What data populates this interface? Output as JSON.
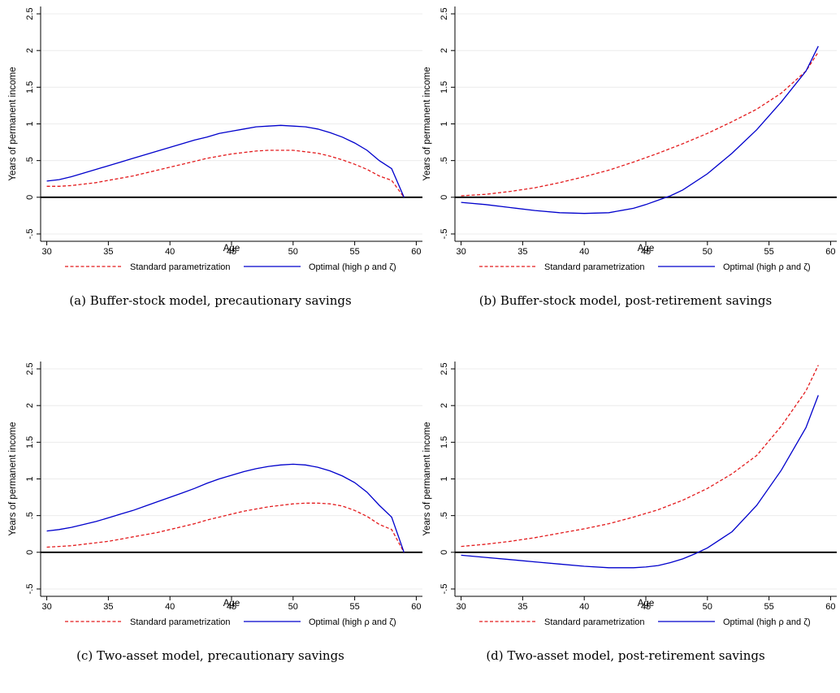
{
  "chart_data": [
    {
      "type": "line",
      "caption": "(a) Buffer-stock model, precautionary savings",
      "xlabel": "Age",
      "ylabel": "Years of permanent income",
      "xlim": [
        29.5,
        60.5
      ],
      "ylim": [
        -0.6,
        2.6
      ],
      "xticks": [
        "30",
        "35",
        "40",
        "45",
        "50",
        "55",
        "60"
      ],
      "yticks": [
        "-.5",
        "0",
        ".5",
        "1",
        "1.5",
        "2",
        "2.5"
      ],
      "xtick_values": [
        30,
        35,
        40,
        45,
        50,
        55,
        60
      ],
      "ytick_values": [
        -0.5,
        0,
        0.5,
        1,
        1.5,
        2,
        2.5
      ],
      "zero_line": true,
      "grid": "horizontal",
      "legend_position": "bottom",
      "series": [
        {
          "name": "Standard parametrization",
          "style": "dashed",
          "color": "#e31a1c",
          "x": [
            30,
            31,
            32,
            33,
            34,
            35,
            36,
            37,
            38,
            39,
            40,
            41,
            42,
            43,
            44,
            45,
            46,
            47,
            48,
            49,
            50,
            51,
            52,
            53,
            54,
            55,
            56,
            57,
            58,
            59
          ],
          "values": [
            0.15,
            0.15,
            0.16,
            0.18,
            0.2,
            0.23,
            0.26,
            0.29,
            0.33,
            0.37,
            0.41,
            0.45,
            0.49,
            0.53,
            0.56,
            0.59,
            0.61,
            0.63,
            0.64,
            0.64,
            0.64,
            0.62,
            0.6,
            0.56,
            0.51,
            0.45,
            0.38,
            0.29,
            0.23,
            0.0
          ]
        },
        {
          "name": "Optimal (high ρ and ζ)",
          "style": "solid",
          "color": "#0000cc",
          "x": [
            30,
            31,
            32,
            33,
            34,
            35,
            36,
            37,
            38,
            39,
            40,
            41,
            42,
            43,
            44,
            45,
            46,
            47,
            48,
            49,
            50,
            51,
            52,
            53,
            54,
            55,
            56,
            57,
            58,
            59
          ],
          "values": [
            0.22,
            0.24,
            0.28,
            0.33,
            0.38,
            0.43,
            0.48,
            0.53,
            0.58,
            0.63,
            0.68,
            0.73,
            0.78,
            0.82,
            0.87,
            0.9,
            0.93,
            0.96,
            0.97,
            0.98,
            0.97,
            0.96,
            0.93,
            0.88,
            0.82,
            0.74,
            0.64,
            0.5,
            0.39,
            0.0
          ]
        }
      ]
    },
    {
      "type": "line",
      "caption": "(b) Buffer-stock model, post-retirement savings",
      "xlabel": "Age",
      "ylabel": "Years of permanent income",
      "xlim": [
        29.5,
        60.5
      ],
      "ylim": [
        -0.6,
        2.6
      ],
      "xticks": [
        "30",
        "35",
        "40",
        "45",
        "50",
        "55",
        "60"
      ],
      "yticks": [
        "-.5",
        "0",
        ".5",
        "1",
        "1.5",
        "2",
        "2.5"
      ],
      "xtick_values": [
        30,
        35,
        40,
        45,
        50,
        55,
        60
      ],
      "ytick_values": [
        -0.5,
        0,
        0.5,
        1,
        1.5,
        2,
        2.5
      ],
      "zero_line": true,
      "grid": "horizontal",
      "legend_position": "bottom",
      "series": [
        {
          "name": "Standard parametrization",
          "style": "dashed",
          "color": "#e31a1c",
          "x": [
            30,
            32,
            34,
            36,
            38,
            40,
            42,
            44,
            46,
            48,
            50,
            52,
            54,
            56,
            58,
            59
          ],
          "values": [
            0.02,
            0.04,
            0.08,
            0.13,
            0.2,
            0.28,
            0.37,
            0.48,
            0.6,
            0.73,
            0.87,
            1.03,
            1.2,
            1.42,
            1.72,
            1.98
          ]
        },
        {
          "name": "Optimal (high ρ and ζ)",
          "style": "solid",
          "color": "#0000cc",
          "x": [
            30,
            32,
            34,
            36,
            38,
            40,
            42,
            44,
            45,
            46,
            47,
            48,
            50,
            52,
            54,
            56,
            58,
            59
          ],
          "values": [
            -0.07,
            -0.1,
            -0.14,
            -0.18,
            -0.21,
            -0.22,
            -0.21,
            -0.15,
            -0.1,
            -0.04,
            0.02,
            0.1,
            0.32,
            0.6,
            0.92,
            1.3,
            1.72,
            2.06
          ]
        }
      ]
    },
    {
      "type": "line",
      "caption": "(c) Two-asset model, precautionary savings",
      "xlabel": "Age",
      "ylabel": "Years of permanent income",
      "xlim": [
        29.5,
        60.5
      ],
      "ylim": [
        -0.6,
        2.6
      ],
      "xticks": [
        "30",
        "35",
        "40",
        "45",
        "50",
        "55",
        "60"
      ],
      "yticks": [
        "-.5",
        "0",
        ".5",
        "1",
        "1.5",
        "2",
        "2.5"
      ],
      "xtick_values": [
        30,
        35,
        40,
        45,
        50,
        55,
        60
      ],
      "ytick_values": [
        -0.5,
        0,
        0.5,
        1,
        1.5,
        2,
        2.5
      ],
      "zero_line": true,
      "grid": "horizontal",
      "legend_position": "bottom",
      "series": [
        {
          "name": "Standard parametrization",
          "style": "dashed",
          "color": "#e31a1c",
          "x": [
            30,
            31,
            32,
            33,
            34,
            35,
            36,
            37,
            38,
            39,
            40,
            41,
            42,
            43,
            44,
            45,
            46,
            47,
            48,
            49,
            50,
            51,
            52,
            53,
            54,
            55,
            56,
            57,
            58,
            59
          ],
          "values": [
            0.07,
            0.08,
            0.09,
            0.11,
            0.13,
            0.15,
            0.18,
            0.21,
            0.24,
            0.27,
            0.31,
            0.35,
            0.39,
            0.44,
            0.48,
            0.52,
            0.56,
            0.59,
            0.62,
            0.64,
            0.66,
            0.67,
            0.67,
            0.66,
            0.63,
            0.57,
            0.49,
            0.38,
            0.31,
            0.0
          ]
        },
        {
          "name": "Optimal (high ρ and ζ)",
          "style": "solid",
          "color": "#0000cc",
          "x": [
            30,
            31,
            32,
            33,
            34,
            35,
            36,
            37,
            38,
            39,
            40,
            41,
            42,
            43,
            44,
            45,
            46,
            47,
            48,
            49,
            50,
            51,
            52,
            53,
            54,
            55,
            56,
            57,
            58,
            59
          ],
          "values": [
            0.29,
            0.31,
            0.34,
            0.38,
            0.42,
            0.47,
            0.52,
            0.57,
            0.63,
            0.69,
            0.75,
            0.81,
            0.87,
            0.94,
            1.0,
            1.05,
            1.1,
            1.14,
            1.17,
            1.19,
            1.2,
            1.19,
            1.16,
            1.11,
            1.04,
            0.95,
            0.82,
            0.64,
            0.48,
            0.0
          ]
        }
      ]
    },
    {
      "type": "line",
      "caption": "(d) Two-asset model, post-retirement savings",
      "xlabel": "Age",
      "ylabel": "Years of permanent income",
      "xlim": [
        29.5,
        60.5
      ],
      "ylim": [
        -0.6,
        2.6
      ],
      "xticks": [
        "30",
        "35",
        "40",
        "45",
        "50",
        "55",
        "60"
      ],
      "yticks": [
        "-.5",
        "0",
        ".5",
        "1",
        "1.5",
        "2",
        "2.5"
      ],
      "xtick_values": [
        30,
        35,
        40,
        45,
        50,
        55,
        60
      ],
      "ytick_values": [
        -0.5,
        0,
        0.5,
        1,
        1.5,
        2,
        2.5
      ],
      "zero_line": true,
      "grid": "horizontal",
      "legend_position": "bottom",
      "series": [
        {
          "name": "Standard parametrization",
          "style": "dashed",
          "color": "#e31a1c",
          "x": [
            30,
            32,
            34,
            36,
            38,
            40,
            42,
            44,
            46,
            48,
            50,
            52,
            54,
            56,
            58,
            59
          ],
          "values": [
            0.08,
            0.11,
            0.15,
            0.2,
            0.26,
            0.32,
            0.39,
            0.48,
            0.58,
            0.71,
            0.87,
            1.07,
            1.32,
            1.72,
            2.2,
            2.55
          ]
        },
        {
          "name": "Optimal (high ρ and ζ)",
          "style": "solid",
          "color": "#0000cc",
          "x": [
            30,
            32,
            34,
            36,
            38,
            40,
            42,
            43,
            44,
            45,
            46,
            47,
            48,
            49,
            50,
            52,
            54,
            56,
            58,
            59
          ],
          "values": [
            -0.04,
            -0.07,
            -0.1,
            -0.13,
            -0.16,
            -0.19,
            -0.21,
            -0.21,
            -0.21,
            -0.2,
            -0.18,
            -0.14,
            -0.09,
            -0.02,
            0.06,
            0.28,
            0.64,
            1.12,
            1.7,
            2.14
          ]
        }
      ]
    }
  ]
}
